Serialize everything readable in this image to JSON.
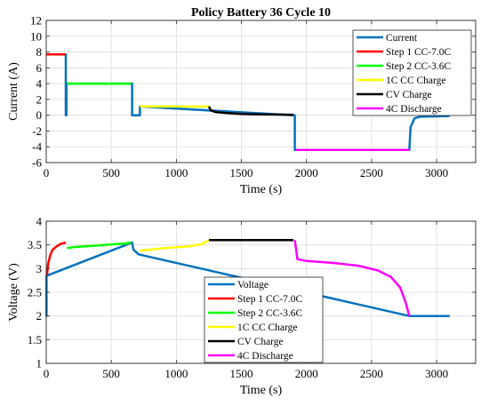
{
  "chart_data": [
    {
      "type": "line",
      "title": "Policy Battery 36 Cycle 10",
      "xlabel": "Time (s)",
      "ylabel": "Current (A)",
      "xlim": [
        0,
        3300
      ],
      "ylim": [
        -6,
        12
      ],
      "xticks": [
        0,
        500,
        1000,
        1500,
        2000,
        2500,
        3000
      ],
      "yticks": [
        -6,
        -4,
        -2,
        0,
        2,
        4,
        6,
        8,
        10,
        12
      ],
      "grid": true,
      "legend": "top-right",
      "series": [
        {
          "name": "Current",
          "color": "#0072BD",
          "width": 2.5,
          "x": [
            0,
            150,
            150,
            155,
            155,
            660,
            660,
            665,
            700,
            700,
            720,
            720,
            1900,
            1910,
            1910,
            2790,
            2800,
            2830,
            2870,
            3100
          ],
          "y": [
            7.7,
            7.7,
            0,
            0,
            4,
            4,
            0,
            0,
            0,
            0,
            0,
            1.1,
            0,
            0,
            -4.4,
            -4.4,
            -1.5,
            -0.4,
            -0.2,
            -0.1
          ]
        },
        {
          "name": "Step 1 CC-7.0C",
          "color": "#FF0000",
          "width": 2.5,
          "x": [
            0,
            150
          ],
          "y": [
            7.7,
            7.7
          ]
        },
        {
          "name": "Step 2 CC-3.6C",
          "color": "#00FF00",
          "width": 2.5,
          "x": [
            160,
            650
          ],
          "y": [
            4.0,
            4.0
          ]
        },
        {
          "name": "1C CC Charge",
          "color": "#FFFF00",
          "width": 2.5,
          "x": [
            720,
            1250
          ],
          "y": [
            1.1,
            1.1
          ]
        },
        {
          "name": "CV Charge",
          "color": "#000000",
          "width": 2.5,
          "x": [
            1250,
            1265,
            1300,
            1400,
            1500,
            1600,
            1700,
            1800,
            1900
          ],
          "y": [
            1.1,
            0.6,
            0.4,
            0.25,
            0.17,
            0.12,
            0.09,
            0.07,
            0.05
          ]
        },
        {
          "name": "4C Discharge",
          "color": "#FF00FF",
          "width": 2.5,
          "x": [
            1920,
            2790
          ],
          "y": [
            -4.4,
            -4.4
          ]
        }
      ]
    },
    {
      "type": "line",
      "title": "",
      "xlabel": "Time (s)",
      "ylabel": "Voltage (V)",
      "xlim": [
        0,
        3300
      ],
      "ylim": [
        1,
        4
      ],
      "xticks": [
        0,
        500,
        1000,
        1500,
        2000,
        2500,
        3000
      ],
      "yticks": [
        1,
        1.5,
        2,
        2.5,
        3,
        3.5,
        4
      ],
      "grid": true,
      "legend": "bottom-center",
      "series": [
        {
          "name": "Voltage",
          "color": "#0072BD",
          "width": 2.5,
          "x": [
            0,
            2,
            2,
            5,
            660,
            670,
            690,
            710,
            2790,
            2800,
            3100
          ],
          "y": [
            2.0,
            2.0,
            2.85,
            2.85,
            3.55,
            3.4,
            3.35,
            3.3,
            2.0,
            2.0,
            2.0
          ]
        },
        {
          "name": "Step 1 CC-7.0C",
          "color": "#FF0000",
          "width": 2.5,
          "x": [
            5,
            15,
            30,
            50,
            80,
            110,
            150
          ],
          "y": [
            2.85,
            3.1,
            3.28,
            3.4,
            3.47,
            3.52,
            3.55
          ]
        },
        {
          "name": "Step 2 CC-3.6C",
          "color": "#00FF00",
          "width": 2.5,
          "x": [
            160,
            200,
            300,
            400,
            500,
            600,
            650
          ],
          "y": [
            3.43,
            3.45,
            3.47,
            3.49,
            3.51,
            3.53,
            3.55
          ]
        },
        {
          "name": "1C CC Charge",
          "color": "#FFFF00",
          "width": 2.5,
          "x": [
            720,
            800,
            900,
            1000,
            1100,
            1200,
            1250
          ],
          "y": [
            3.38,
            3.4,
            3.43,
            3.45,
            3.47,
            3.52,
            3.6
          ]
        },
        {
          "name": "CV Charge",
          "color": "#000000",
          "width": 2.5,
          "x": [
            1250,
            1900
          ],
          "y": [
            3.6,
            3.6
          ]
        },
        {
          "name": "4C Discharge",
          "color": "#FF00FF",
          "width": 2.5,
          "x": [
            1910,
            1930,
            2000,
            2200,
            2400,
            2550,
            2650,
            2720,
            2760,
            2790
          ],
          "y": [
            3.6,
            3.2,
            3.16,
            3.12,
            3.06,
            2.96,
            2.82,
            2.6,
            2.3,
            2.0
          ]
        }
      ]
    }
  ]
}
